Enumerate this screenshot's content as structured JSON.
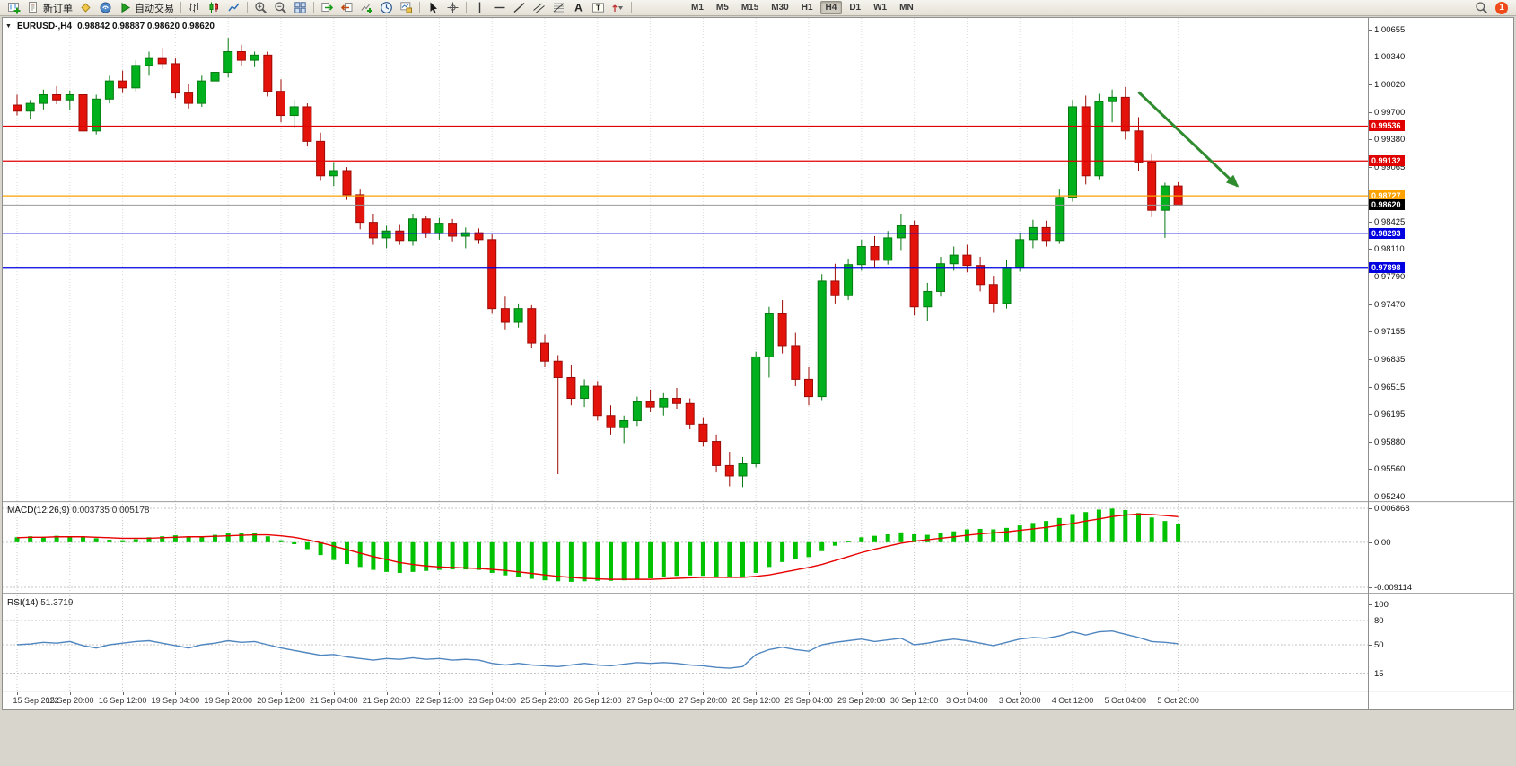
{
  "colors": {
    "candle_up": "#00B01D",
    "candle_up_border": "#077A12",
    "candle_down": "#E3120B",
    "candle_down_border": "#9E0B06",
    "macd_histogram": "#00C200",
    "macd_signal": "#E80000",
    "rsi_line": "#4F86C0",
    "grid": "#DCDCDC",
    "subgrid": "#C8C8C8",
    "resistance": "#E00000",
    "support": "#0000E0",
    "pivot": "#FFA200",
    "bid_line": "#9A9A9A",
    "bid_tag": "#000000",
    "arrow": "#2E8B2E"
  },
  "icons": {
    "text_tool": "A",
    "label_tool": "T",
    "collapse": "▼"
  },
  "toolbar": {
    "items": [
      {
        "name": "new-chart"
      },
      {
        "name": "new-order",
        "label": "新订单"
      },
      {
        "name": "metaeditor"
      },
      {
        "name": "strategy-tester"
      },
      {
        "name": "autotrading",
        "label": "自动交易"
      },
      {
        "sep": true
      },
      {
        "name": "bar-chart"
      },
      {
        "name": "candlestick-chart"
      },
      {
        "name": "line-chart"
      },
      {
        "sep": true
      },
      {
        "name": "zoom-in"
      },
      {
        "name": "zoom-out"
      },
      {
        "name": "tile-windows"
      },
      {
        "sep": true
      },
      {
        "name": "auto-scroll"
      },
      {
        "name": "chart-shift"
      },
      {
        "name": "indicators"
      },
      {
        "name": "periods"
      },
      {
        "name": "templates"
      },
      {
        "sep": true
      },
      {
        "name": "cursor"
      },
      {
        "name": "crosshair"
      },
      {
        "sep": true
      },
      {
        "name": "vertical-line"
      },
      {
        "name": "horizontal-line"
      },
      {
        "name": "trendline"
      },
      {
        "name": "equidistant-channel"
      },
      {
        "name": "fibonacci"
      },
      {
        "name": "text"
      },
      {
        "name": "text-label"
      },
      {
        "name": "arrows"
      },
      {
        "sep": true
      }
    ],
    "timeframes": [
      "M1",
      "M5",
      "M15",
      "M30",
      "H1",
      "H4",
      "D1",
      "W1",
      "MN"
    ],
    "active_timeframe": "H4",
    "notification_count": "1"
  },
  "chart": {
    "symbol_period": "EURUSD-,H4",
    "ohlc_text": "0.98842 0.98887 0.98620 0.98620",
    "macd_title": "MACD(12,26,9)",
    "macd_values": "0.003735 0.005178",
    "rsi_title": "RSI(14)",
    "rsi_value": "51.3719"
  },
  "chart_data": [
    {
      "type": "candlestick",
      "symbol": "EURUSD-",
      "timeframe": "H4",
      "current_ohlc": {
        "open": 0.98842,
        "high": 0.98887,
        "low": 0.9862,
        "close": 0.9862
      },
      "ylim": [
        0.9524,
        1.00655
      ],
      "y_ticks": [
        "1.00655",
        "1.00340",
        "1.00020",
        "0.99700",
        "0.99380",
        "0.99065",
        "0.98745",
        "0.98425",
        "0.98110",
        "0.97790",
        "0.97470",
        "0.97155",
        "0.96835",
        "0.96515",
        "0.96195",
        "0.95880",
        "0.95560",
        "0.95240"
      ],
      "x_labels": [
        "15 Sep 2022",
        "15 Sep 20:00",
        "16 Sep 12:00",
        "19 Sep 04:00",
        "19 Sep 20:00",
        "20 Sep 12:00",
        "21 Sep 04:00",
        "21 Sep 20:00",
        "22 Sep 12:00",
        "23 Sep 04:00",
        "25 Sep 23:00",
        "26 Sep 12:00",
        "27 Sep 04:00",
        "27 Sep 20:00",
        "28 Sep 12:00",
        "29 Sep 04:00",
        "29 Sep 20:00",
        "30 Sep 12:00",
        "3 Oct 04:00",
        "3 Oct 20:00",
        "4 Oct 12:00",
        "5 Oct 04:00",
        "5 Oct 20:00"
      ],
      "x_label_step": 4,
      "candles": [
        [
          0.9978,
          0.999,
          0.9966,
          0.9971
        ],
        [
          0.9971,
          0.9984,
          0.9962,
          0.998
        ],
        [
          0.998,
          0.9996,
          0.9973,
          0.999
        ],
        [
          0.999,
          1.0,
          0.9979,
          0.9984
        ],
        [
          0.9984,
          0.9995,
          0.9972,
          0.999
        ],
        [
          0.999,
          0.9998,
          0.9941,
          0.9948
        ],
        [
          0.9948,
          0.999,
          0.9944,
          0.9985
        ],
        [
          0.9985,
          1.0012,
          0.998,
          1.0006
        ],
        [
          1.0006,
          1.0018,
          0.9992,
          0.9998
        ],
        [
          0.9998,
          1.003,
          0.9994,
          1.0024
        ],
        [
          1.0024,
          1.004,
          1.0012,
          1.0032
        ],
        [
          1.0032,
          1.0044,
          1.002,
          1.0026
        ],
        [
          1.0026,
          1.0032,
          0.9986,
          0.9992
        ],
        [
          0.9992,
          1.0002,
          0.9974,
          0.998
        ],
        [
          0.998,
          1.0012,
          0.9976,
          1.0006
        ],
        [
          1.0006,
          1.0022,
          0.9998,
          1.0016
        ],
        [
          1.0016,
          1.0056,
          1.001,
          1.004
        ],
        [
          1.004,
          1.0048,
          1.0024,
          1.003
        ],
        [
          1.003,
          1.004,
          1.0022,
          1.0036
        ],
        [
          1.0036,
          1.004,
          0.9988,
          0.9994
        ],
        [
          0.9994,
          1.0008,
          0.9958,
          0.9966
        ],
        [
          0.9966,
          0.9984,
          0.9952,
          0.9976
        ],
        [
          0.9976,
          0.998,
          0.993,
          0.9936
        ],
        [
          0.9936,
          0.9946,
          0.989,
          0.9896
        ],
        [
          0.9896,
          0.9912,
          0.9884,
          0.9902
        ],
        [
          0.9902,
          0.9906,
          0.9868,
          0.9874
        ],
        [
          0.9874,
          0.988,
          0.9834,
          0.9842
        ],
        [
          0.9842,
          0.9852,
          0.9816,
          0.9824
        ],
        [
          0.9824,
          0.9838,
          0.9812,
          0.9832
        ],
        [
          0.9832,
          0.984,
          0.9816,
          0.9821
        ],
        [
          0.9821,
          0.9852,
          0.9815,
          0.9846
        ],
        [
          0.9846,
          0.985,
          0.9824,
          0.9829
        ],
        [
          0.9829,
          0.9847,
          0.9822,
          0.9841
        ],
        [
          0.9841,
          0.9846,
          0.982,
          0.9826
        ],
        [
          0.9826,
          0.9836,
          0.9812,
          0.983
        ],
        [
          0.983,
          0.9835,
          0.9817,
          0.9822
        ],
        [
          0.9822,
          0.9828,
          0.9736,
          0.9742
        ],
        [
          0.9742,
          0.9756,
          0.9718,
          0.9726
        ],
        [
          0.9726,
          0.9748,
          0.972,
          0.9742
        ],
        [
          0.9742,
          0.9746,
          0.9696,
          0.9702
        ],
        [
          0.9702,
          0.9712,
          0.9674,
          0.9681
        ],
        [
          0.9681,
          0.9688,
          0.955,
          0.9662
        ],
        [
          0.9662,
          0.9676,
          0.963,
          0.9638
        ],
        [
          0.9638,
          0.966,
          0.9628,
          0.9652
        ],
        [
          0.9652,
          0.9658,
          0.9612,
          0.9618
        ],
        [
          0.9618,
          0.963,
          0.9596,
          0.9604
        ],
        [
          0.9604,
          0.9618,
          0.9586,
          0.9612
        ],
        [
          0.9612,
          0.964,
          0.9606,
          0.9634
        ],
        [
          0.9634,
          0.9648,
          0.9622,
          0.9628
        ],
        [
          0.9628,
          0.9644,
          0.9618,
          0.9638
        ],
        [
          0.9638,
          0.965,
          0.9626,
          0.9632
        ],
        [
          0.9632,
          0.9638,
          0.9602,
          0.9608
        ],
        [
          0.9608,
          0.9616,
          0.9582,
          0.9588
        ],
        [
          0.9588,
          0.9596,
          0.9552,
          0.956
        ],
        [
          0.956,
          0.9576,
          0.9536,
          0.9548
        ],
        [
          0.9548,
          0.957,
          0.9535,
          0.9562
        ],
        [
          0.9562,
          0.9692,
          0.9558,
          0.9686
        ],
        [
          0.9686,
          0.9744,
          0.9662,
          0.9736
        ],
        [
          0.9736,
          0.9752,
          0.969,
          0.9699
        ],
        [
          0.9699,
          0.9714,
          0.9652,
          0.966
        ],
        [
          0.966,
          0.9674,
          0.963,
          0.964
        ],
        [
          0.964,
          0.9782,
          0.9636,
          0.9774
        ],
        [
          0.9774,
          0.9794,
          0.9748,
          0.9757
        ],
        [
          0.9757,
          0.98,
          0.9752,
          0.9793
        ],
        [
          0.9793,
          0.9822,
          0.9786,
          0.9814
        ],
        [
          0.9814,
          0.9826,
          0.979,
          0.9798
        ],
        [
          0.9798,
          0.9832,
          0.9793,
          0.9824
        ],
        [
          0.9824,
          0.9852,
          0.981,
          0.9838
        ],
        [
          0.9838,
          0.9844,
          0.9734,
          0.9744
        ],
        [
          0.9744,
          0.9772,
          0.9728,
          0.9762
        ],
        [
          0.9762,
          0.9802,
          0.9756,
          0.9794
        ],
        [
          0.9794,
          0.9814,
          0.9786,
          0.9804
        ],
        [
          0.9804,
          0.9816,
          0.9784,
          0.9792
        ],
        [
          0.9792,
          0.9802,
          0.9762,
          0.977
        ],
        [
          0.977,
          0.978,
          0.9738,
          0.9748
        ],
        [
          0.9748,
          0.9798,
          0.9742,
          0.979
        ],
        [
          0.979,
          0.983,
          0.9785,
          0.9822
        ],
        [
          0.9822,
          0.9845,
          0.9812,
          0.9836
        ],
        [
          0.9836,
          0.9844,
          0.9814,
          0.9821
        ],
        [
          0.9821,
          0.988,
          0.9817,
          0.9871
        ],
        [
          0.9871,
          0.9984,
          0.9866,
          0.9976
        ],
        [
          0.9976,
          0.9989,
          0.9886,
          0.9896
        ],
        [
          0.9896,
          0.9991,
          0.9892,
          0.9982
        ],
        [
          0.9982,
          0.9996,
          0.9958,
          0.9987
        ],
        [
          0.9987,
          0.9999,
          0.9938,
          0.9948
        ],
        [
          0.9948,
          0.9964,
          0.9902,
          0.9912
        ],
        [
          0.9912,
          0.9922,
          0.9848,
          0.9856
        ],
        [
          0.9856,
          0.9888,
          0.9824,
          0.98842
        ],
        [
          0.98842,
          0.98887,
          0.9862,
          0.9862
        ]
      ],
      "hlines": [
        {
          "price": 0.99536,
          "label": "0.99536",
          "color": "#E00000"
        },
        {
          "price": 0.99132,
          "label": "0.99132",
          "color": "#E00000"
        },
        {
          "price": 0.98727,
          "label": "0.98727",
          "color": "#FFA200"
        },
        {
          "price": 0.98293,
          "label": "0.98293",
          "color": "#0000E0"
        },
        {
          "price": 0.97898,
          "label": "0.97898",
          "color": "#0000E0"
        }
      ],
      "bid": {
        "price": 0.9862,
        "label": "0.98620"
      },
      "arrow": {
        "from_index": 85,
        "from_price": 0.9993,
        "to_index": 92.5,
        "to_price": 0.9884
      }
    },
    {
      "type": "bar",
      "title": "MACD(12,26,9)",
      "current_values": [
        0.003735,
        0.005178
      ],
      "ylim": [
        -0.009114,
        0.006868
      ],
      "y_ticks": [
        "0.006868",
        "0.00",
        "-0.009114"
      ],
      "histogram": [
        0.001,
        0.0012,
        0.0011,
        0.0013,
        0.0012,
        0.001,
        0.0008,
        0.0005,
        0.0004,
        0.0006,
        0.001,
        0.0012,
        0.0014,
        0.0011,
        0.0012,
        0.0015,
        0.0019,
        0.0018,
        0.0018,
        0.0012,
        0.0004,
        -0.0004,
        -0.0014,
        -0.0026,
        -0.0036,
        -0.0044,
        -0.005,
        -0.0056,
        -0.006,
        -0.0062,
        -0.006,
        -0.0058,
        -0.0056,
        -0.0055,
        -0.0055,
        -0.0056,
        -0.0062,
        -0.0067,
        -0.007,
        -0.0074,
        -0.0077,
        -0.0079,
        -0.008,
        -0.0079,
        -0.0078,
        -0.0078,
        -0.0077,
        -0.0075,
        -0.0073,
        -0.007,
        -0.0068,
        -0.0067,
        -0.0068,
        -0.007,
        -0.0072,
        -0.0071,
        -0.0062,
        -0.005,
        -0.004,
        -0.0034,
        -0.003,
        -0.0018,
        -0.0007,
        0.0002,
        0.001,
        0.0013,
        0.0016,
        0.002,
        0.0016,
        0.0015,
        0.0018,
        0.0022,
        0.0026,
        0.0027,
        0.0026,
        0.0029,
        0.0034,
        0.0039,
        0.0043,
        0.0049,
        0.0057,
        0.0061,
        0.0066,
        0.0068,
        0.0065,
        0.0059,
        0.005,
        0.0043,
        0.003735
      ],
      "signal": [
        0.0009,
        0.001,
        0.001,
        0.0011,
        0.0011,
        0.0011,
        0.001,
        0.0009,
        0.0008,
        0.0008,
        0.0008,
        0.0009,
        0.001,
        0.0011,
        0.0011,
        0.0012,
        0.0013,
        0.0014,
        0.0015,
        0.0015,
        0.0013,
        0.001,
        0.0005,
        -0.0001,
        -0.0008,
        -0.0015,
        -0.0022,
        -0.0029,
        -0.0035,
        -0.0041,
        -0.0045,
        -0.0048,
        -0.005,
        -0.0051,
        -0.0052,
        -0.0053,
        -0.0055,
        -0.0057,
        -0.006,
        -0.0063,
        -0.0066,
        -0.0069,
        -0.0071,
        -0.0073,
        -0.0074,
        -0.0075,
        -0.0075,
        -0.0075,
        -0.0075,
        -0.0074,
        -0.0073,
        -0.0072,
        -0.0071,
        -0.0071,
        -0.0071,
        -0.0071,
        -0.0069,
        -0.0066,
        -0.0061,
        -0.0056,
        -0.0051,
        -0.0045,
        -0.0037,
        -0.0029,
        -0.0021,
        -0.0014,
        -0.0008,
        -0.0002,
        0.0002,
        0.0005,
        0.0008,
        0.0011,
        0.0014,
        0.0017,
        0.0019,
        0.0021,
        0.0024,
        0.0027,
        0.003,
        0.0034,
        0.0038,
        0.0043,
        0.0047,
        0.0052,
        0.0055,
        0.0057,
        0.0056,
        0.0054,
        0.005178
      ]
    },
    {
      "type": "line",
      "title": "RSI(14)",
      "current_value": 51.3719,
      "ylim": [
        0,
        100
      ],
      "y_ticks": [
        "100",
        "80",
        "50",
        "15"
      ],
      "levels": [
        80,
        50,
        15
      ],
      "values": [
        50,
        51,
        53,
        52,
        54,
        49,
        46,
        50,
        52,
        54,
        55,
        52,
        49,
        46,
        50,
        52,
        55,
        53,
        54,
        50,
        46,
        43,
        40,
        37,
        38,
        35,
        33,
        31,
        33,
        32,
        34,
        32,
        33,
        31,
        32,
        31,
        27,
        25,
        27,
        25,
        24,
        23,
        25,
        27,
        25,
        24,
        26,
        28,
        27,
        28,
        27,
        25,
        24,
        22,
        21,
        23,
        38,
        44,
        47,
        44,
        42,
        50,
        53,
        55,
        57,
        54,
        56,
        58,
        50,
        52,
        55,
        57,
        55,
        52,
        49,
        53,
        57,
        59,
        58,
        61,
        66,
        62,
        66,
        67,
        63,
        59,
        54,
        53,
        51.37
      ]
    }
  ]
}
